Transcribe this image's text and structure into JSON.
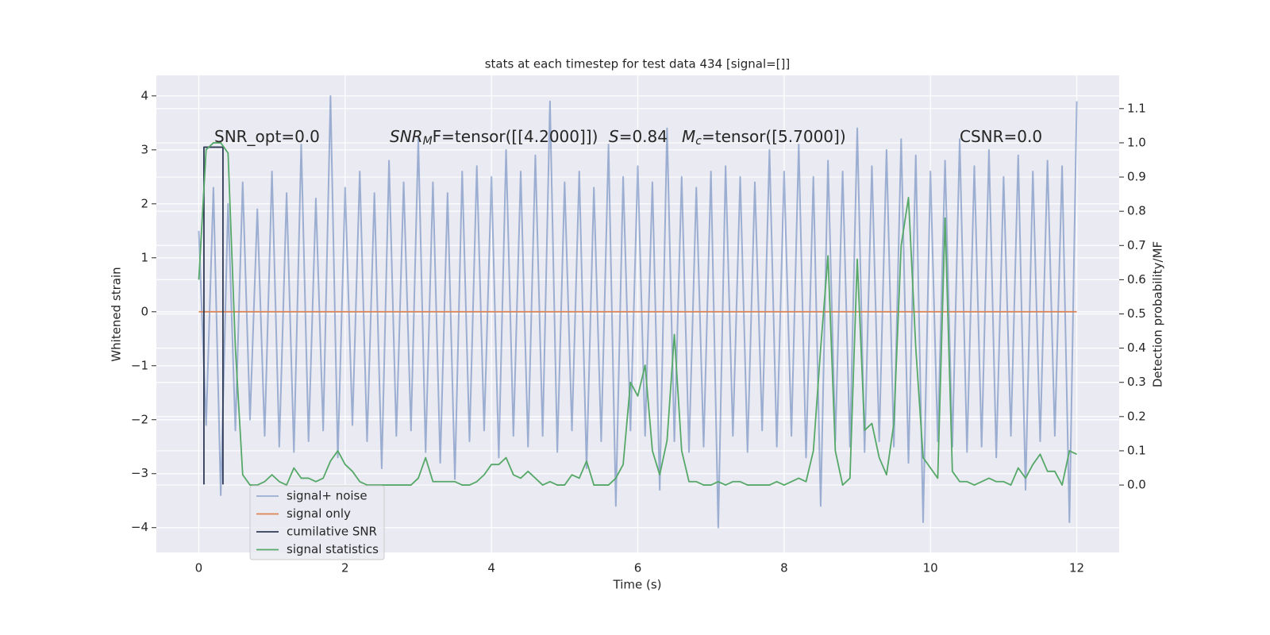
{
  "chart_data": {
    "type": "line",
    "title": "stats at each timestep for test data 434 [signal=[]]",
    "xlabel": "Time (s)",
    "ylabel": "Whitened strain",
    "y2label": "Detection probability/MF",
    "annotations": [
      [
        "SNR_opt=0.0"
      ],
      [
        "SNR",
        "M",
        "F=tensor([[4.2000]])"
      ],
      [
        "S",
        "=0.84"
      ],
      [
        "M",
        "c",
        "=tensor([5.7000])"
      ],
      [
        "CSNR=0.0"
      ]
    ],
    "xlim": [
      -0.58,
      12.58
    ],
    "ylim": [
      -4.46,
      4.38
    ],
    "y2lim": [
      -0.197,
      1.197
    ],
    "xticks": [
      0,
      2,
      4,
      6,
      8,
      10,
      12
    ],
    "yticks": [
      {
        "value": -4,
        "label": "−4"
      },
      {
        "value": -3,
        "label": "−3"
      },
      {
        "value": -2,
        "label": "−2"
      },
      {
        "value": -1,
        "label": "−1"
      },
      0,
      1,
      2,
      3,
      4
    ],
    "y2ticks": [
      {
        "value": 0,
        "label": "0.0"
      },
      0.1,
      0.2,
      0.3,
      0.4,
      0.5,
      0.6,
      0.7,
      0.8,
      0.9,
      {
        "value": 1,
        "label": "1.0"
      },
      1.1
    ],
    "grid": true,
    "legend": "lower left",
    "x": [
      0,
      0.1,
      0.2,
      0.3,
      0.4,
      0.5,
      0.6,
      0.7,
      0.8,
      0.9,
      1,
      1.1,
      1.2,
      1.3,
      1.4,
      1.5,
      1.6,
      1.7,
      1.8,
      1.9,
      2,
      2.1,
      2.2,
      2.3,
      2.4,
      2.5,
      2.6,
      2.7,
      2.8,
      2.9,
      3,
      3.1,
      3.2,
      3.3,
      3.4,
      3.5,
      3.6,
      3.7,
      3.8,
      3.9,
      4,
      4.1,
      4.2,
      4.3,
      4.4,
      4.5,
      4.6,
      4.7,
      4.8,
      4.9,
      5,
      5.1,
      5.2,
      5.3,
      5.4,
      5.5,
      5.6,
      5.7,
      5.8,
      5.9,
      6,
      6.1,
      6.2,
      6.3,
      6.4,
      6.5,
      6.6,
      6.7,
      6.8,
      6.9,
      7,
      7.1,
      7.2,
      7.3,
      7.4,
      7.5,
      7.6,
      7.7,
      7.8,
      7.9,
      8,
      8.1,
      8.2,
      8.3,
      8.4,
      8.5,
      8.6,
      8.7,
      8.8,
      8.9,
      9,
      9.1,
      9.2,
      9.3,
      9.4,
      9.5,
      9.6,
      9.7,
      9.8,
      9.9,
      10,
      10.1,
      10.2,
      10.3,
      10.4,
      10.5,
      10.6,
      10.7,
      10.8,
      10.9,
      11,
      11.1,
      11.2,
      11.3,
      11.4,
      11.5,
      11.6,
      11.7,
      11.8,
      11.9,
      12
    ],
    "series": [
      {
        "name": "signal+ noise",
        "color": "#4c72b0",
        "axis": "y",
        "values": [
          1.5,
          -2.1,
          2.3,
          -3.4,
          2.0,
          -2.2,
          2.4,
          -2.0,
          1.9,
          -2.3,
          2.6,
          -2.5,
          2.2,
          -2.6,
          3.1,
          -2.4,
          2.1,
          -2.2,
          4.0,
          -2.7,
          2.3,
          -2.1,
          2.6,
          -2.4,
          2.2,
          -2.9,
          2.8,
          -2.3,
          2.4,
          -2.2,
          3.2,
          -2.6,
          2.4,
          -2.8,
          2.2,
          -3.1,
          2.6,
          -2.4,
          2.7,
          -2.2,
          2.5,
          -2.7,
          3.0,
          -2.3,
          2.6,
          -2.5,
          2.9,
          -2.3,
          3.9,
          -2.6,
          2.4,
          -2.2,
          2.6,
          -2.9,
          2.3,
          -2.4,
          3.1,
          -3.6,
          2.5,
          -2.2,
          2.7,
          -2.3,
          2.4,
          -3.3,
          3.4,
          -2.4,
          2.5,
          -2.6,
          2.3,
          -2.5,
          2.6,
          -4.0,
          2.7,
          -2.3,
          2.5,
          -2.6,
          2.4,
          -2.2,
          3.0,
          -2.5,
          2.6,
          -2.3,
          3.1,
          -2.7,
          2.5,
          -3.6,
          2.8,
          -2.4,
          2.6,
          -2.5,
          3.4,
          -2.6,
          2.7,
          -2.4,
          3.0,
          -2.5,
          3.2,
          -2.8,
          2.9,
          -3.9,
          2.6,
          -2.4,
          2.8,
          -2.5,
          3.2,
          -2.6,
          2.7,
          -2.5,
          3.0,
          -2.7,
          2.5,
          -2.3,
          2.9,
          -3.3,
          2.6,
          -2.4,
          2.8,
          -2.3,
          2.7,
          -3.9,
          3.9
        ]
      },
      {
        "name": "signal only",
        "color": "#dd8452",
        "axis": "y",
        "x": [
          0,
          12
        ],
        "values": [
          0,
          0
        ]
      },
      {
        "name": "cumilative SNR",
        "color": "#2e3a55",
        "axis": "y",
        "x": [
          0.07,
          0.07,
          0.33,
          0.33
        ],
        "values": [
          -3.2,
          3.05,
          3.05,
          -3.2
        ]
      },
      {
        "name": "signal statistics",
        "color": "#55a868",
        "axis": "y2",
        "values": [
          0.6,
          0.98,
          1.0,
          1.0,
          0.97,
          0.4,
          0.03,
          0.0,
          0.0,
          0.01,
          0.03,
          0.01,
          0.0,
          0.05,
          0.02,
          0.02,
          0.01,
          0.02,
          0.07,
          0.1,
          0.06,
          0.04,
          0.01,
          0.0,
          0.0,
          0.0,
          0.0,
          0.0,
          0.0,
          0.0,
          0.02,
          0.08,
          0.01,
          0.01,
          0.01,
          0.01,
          0.0,
          0.0,
          0.01,
          0.03,
          0.06,
          0.06,
          0.08,
          0.03,
          0.02,
          0.04,
          0.02,
          0.0,
          0.01,
          0.0,
          0.0,
          0.03,
          0.02,
          0.07,
          0.0,
          0.0,
          0.0,
          0.02,
          0.06,
          0.3,
          0.26,
          0.35,
          0.1,
          0.03,
          0.13,
          0.44,
          0.1,
          0.01,
          0.01,
          0.0,
          0.0,
          0.01,
          0.0,
          0.01,
          0.01,
          0.0,
          0.0,
          0.0,
          0.0,
          0.01,
          0.0,
          0.01,
          0.02,
          0.01,
          0.1,
          0.4,
          0.67,
          0.1,
          0.0,
          0.02,
          0.66,
          0.16,
          0.18,
          0.08,
          0.03,
          0.18,
          0.7,
          0.84,
          0.4,
          0.08,
          0.05,
          0.02,
          0.78,
          0.04,
          0.01,
          0.01,
          0.0,
          0.01,
          0.02,
          0.01,
          0.01,
          0.0,
          0.05,
          0.02,
          0.06,
          0.09,
          0.04,
          0.04,
          0.0,
          0.1,
          0.09
        ]
      }
    ]
  }
}
